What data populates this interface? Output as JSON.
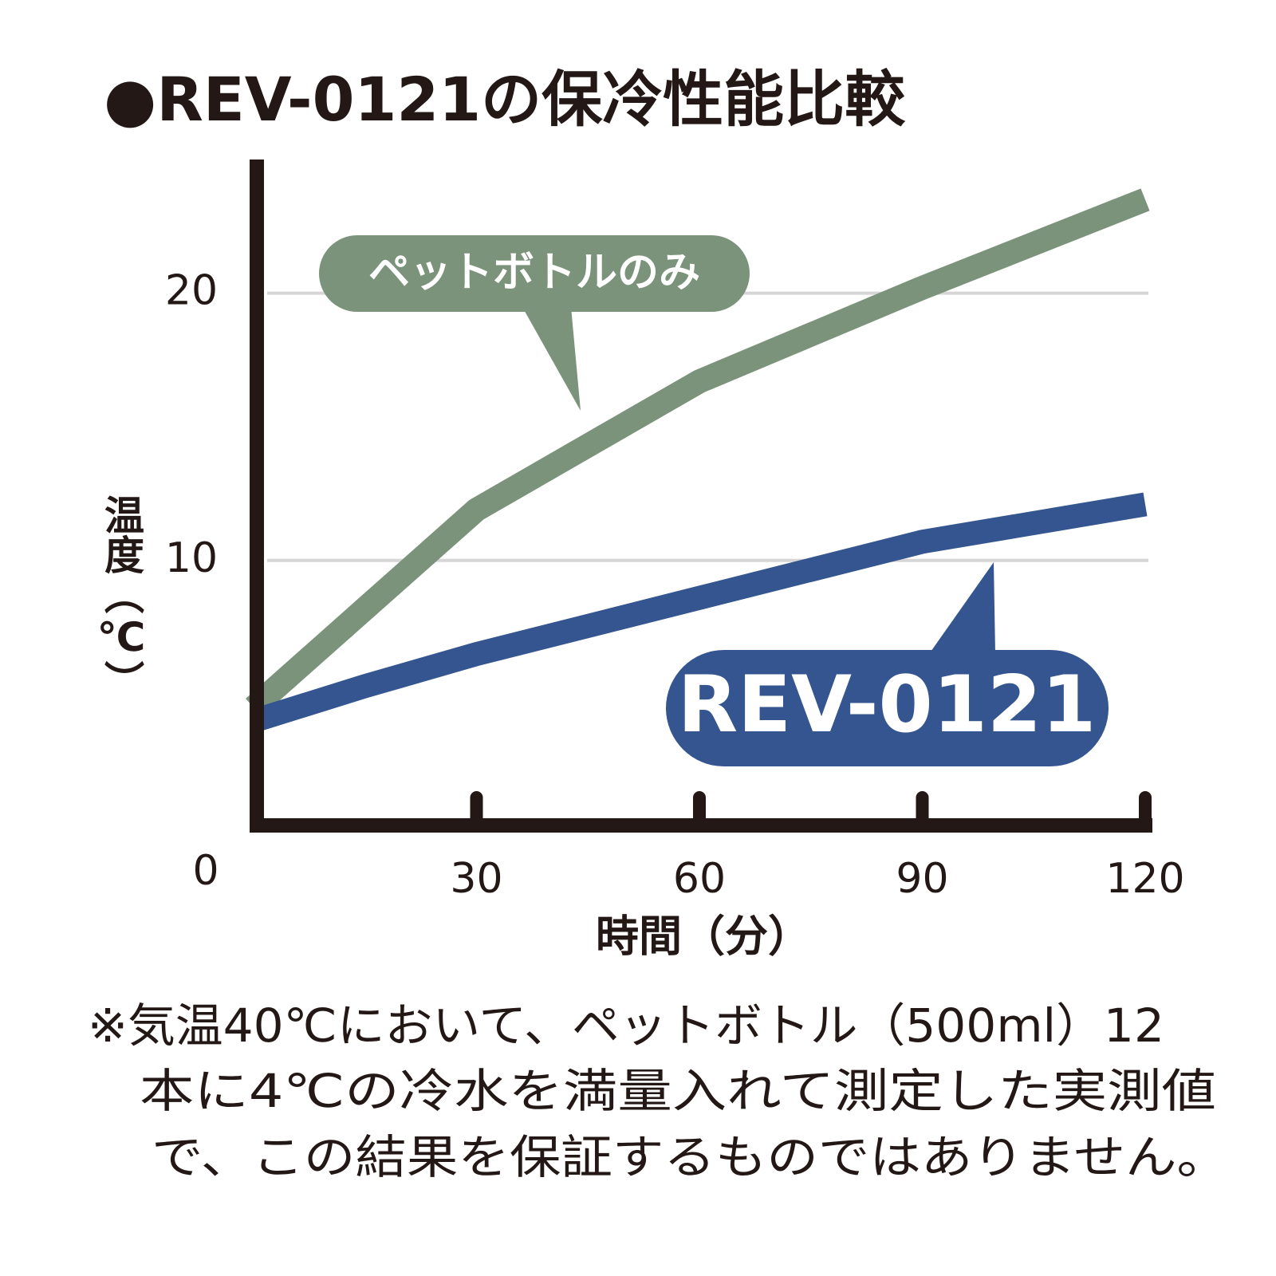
{
  "chart_data": {
    "type": "line",
    "title": "●REV-0121の保冷性能比較",
    "x_label": "時間（分）",
    "y_label": "温度（℃）",
    "x": [
      0,
      15,
      30,
      60,
      90,
      120
    ],
    "series": [
      {
        "name": "ペットボトルのみ",
        "color": "#7b937a",
        "values": [
          4.5,
          8.2,
          11.9,
          16.7,
          20.2,
          23.5
        ]
      },
      {
        "name": "REV-0121",
        "color": "#34558f",
        "values": [
          4.0,
          5.3,
          6.5,
          8.6,
          10.7,
          12.1
        ]
      }
    ],
    "xlim": [
      0,
      120
    ],
    "xticks": [
      0,
      30,
      60,
      90,
      120
    ],
    "ylim": [
      0,
      25
    ],
    "yticks": [
      10,
      20
    ],
    "grid": true,
    "note": [
      "※気温40℃において、ペットボトル（500ml）12",
      "本に4℃の冷水を満量入れて測定した実測値",
      "で、この結果を保証するものではありません。"
    ]
  }
}
